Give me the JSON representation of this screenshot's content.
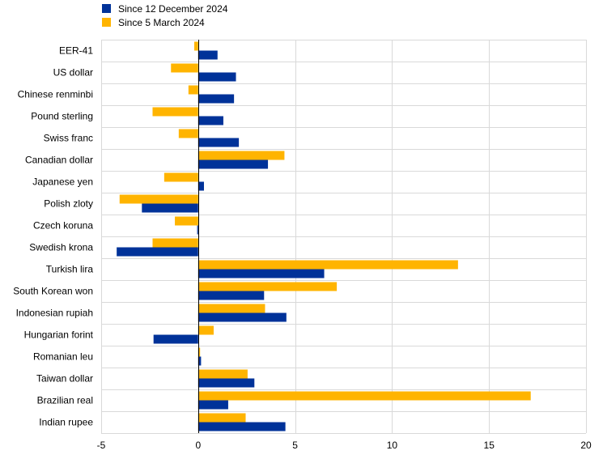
{
  "chart_data": {
    "type": "bar",
    "orientation": "horizontal",
    "categories": [
      "EER-41",
      "US dollar",
      "Chinese renminbi",
      "Pound sterling",
      "Swiss franc",
      "Canadian dollar",
      "Japanese yen",
      "Polish zloty",
      "Czech koruna",
      "Swedish krona",
      "Turkish lira",
      "South Korean won",
      "Indonesian rupiah",
      "Hungarian forint",
      "Romanian leu",
      "Taiwan dollar",
      "Brazilian real",
      "Indian rupee"
    ],
    "series": [
      {
        "name": "Since 12 December 2024",
        "color": "#003299",
        "values": [
          1.0,
          1.95,
          1.85,
          1.3,
          2.1,
          3.6,
          0.3,
          -2.9,
          -0.05,
          -4.2,
          6.5,
          3.4,
          4.55,
          -2.3,
          0.15,
          2.9,
          1.55,
          4.5
        ]
      },
      {
        "name": "Since 5 March 2024",
        "color": "#FFB400",
        "values": [
          -0.2,
          -1.4,
          -0.5,
          -2.35,
          -1.0,
          4.45,
          -1.75,
          -4.05,
          -1.2,
          -2.35,
          13.4,
          7.15,
          3.45,
          0.8,
          0.1,
          2.55,
          17.15,
          2.45
        ]
      }
    ],
    "xlim": [
      -5,
      20
    ],
    "xticks": [
      "-5",
      "0",
      "5",
      "10",
      "15",
      "20"
    ],
    "grid": "vertical",
    "legend": "top-left"
  }
}
